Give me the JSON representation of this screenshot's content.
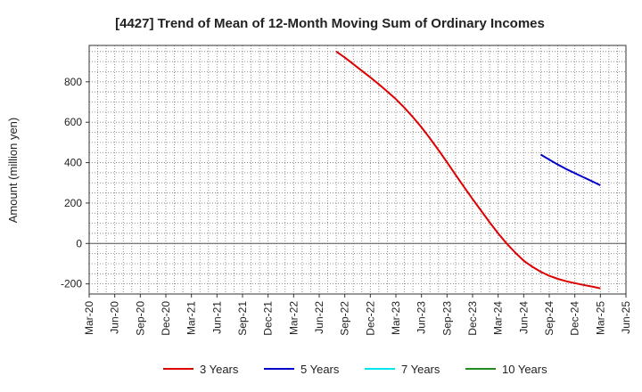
{
  "chart_data": {
    "type": "line",
    "title": "[4427]  Trend of Mean of 12-Month Moving Sum of Ordinary Incomes",
    "ylabel": "Amount (million yen)",
    "xlabel": "",
    "ylim": [
      -250,
      980
    ],
    "yticks": [
      -200,
      0,
      200,
      400,
      600,
      800
    ],
    "x_tick_labels": [
      "Mar-20",
      "Jun-20",
      "Sep-20",
      "Dec-20",
      "Mar-21",
      "Jun-21",
      "Sep-21",
      "Dec-21",
      "Mar-22",
      "Jun-22",
      "Sep-22",
      "Dec-22",
      "Mar-23",
      "Jun-23",
      "Sep-23",
      "Dec-23",
      "Mar-24",
      "Jun-24",
      "Sep-24",
      "Dec-24",
      "Mar-25",
      "Jun-25"
    ],
    "grid": true,
    "legend_position": "bottom",
    "series": [
      {
        "name": "3 Years",
        "color": "#dd0000",
        "x": [
          "2022-08",
          "2022-09",
          "2022-10",
          "2022-11",
          "2022-12",
          "2023-01",
          "2023-02",
          "2023-03",
          "2023-04",
          "2023-05",
          "2023-06",
          "2023-07",
          "2023-08",
          "2023-09",
          "2023-10",
          "2023-11",
          "2023-12",
          "2024-01",
          "2024-02",
          "2024-03",
          "2024-04",
          "2024-05",
          "2024-06",
          "2024-07",
          "2024-08",
          "2024-09",
          "2024-10",
          "2024-11",
          "2024-12",
          "2025-01",
          "2025-02",
          "2025-03"
        ],
        "values": [
          950,
          920,
          888,
          855,
          822,
          788,
          752,
          714,
          672,
          625,
          575,
          520,
          462,
          402,
          340,
          280,
          220,
          162,
          105,
          50,
          0,
          -45,
          -85,
          -115,
          -140,
          -160,
          -175,
          -187,
          -196,
          -205,
          -213,
          -222
        ]
      },
      {
        "name": "5 Years",
        "color": "#0000cc",
        "x": [
          "2024-08",
          "2024-09",
          "2024-10",
          "2024-11",
          "2024-12",
          "2025-01",
          "2025-02",
          "2025-03"
        ],
        "values": [
          440,
          415,
          390,
          368,
          348,
          328,
          308,
          288
        ]
      },
      {
        "name": "7 Years",
        "color": "#00e5ee",
        "x": [],
        "values": []
      },
      {
        "name": "10 Years",
        "color": "#228b22",
        "x": [],
        "values": []
      }
    ]
  }
}
